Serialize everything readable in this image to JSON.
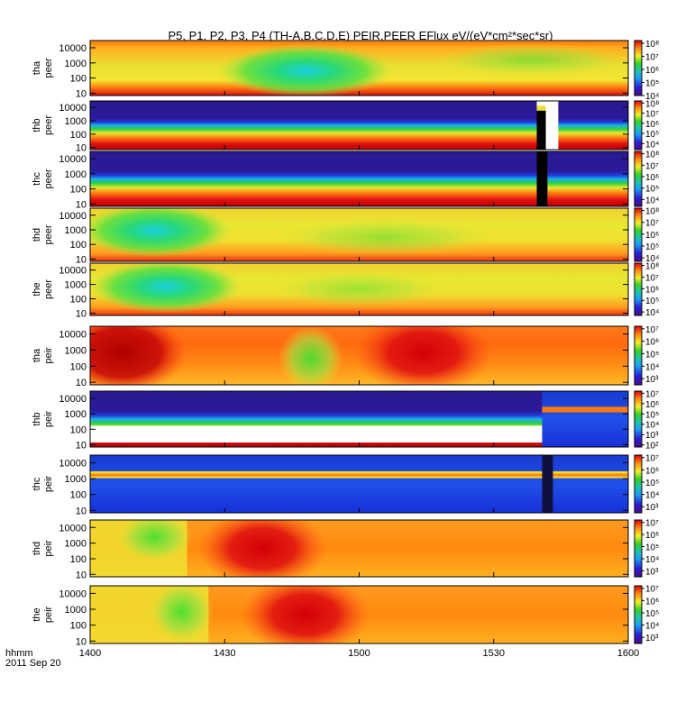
{
  "chart_data": {
    "type": "heatmap",
    "title": "P5, P1, P2, P3, P4 (TH-A,B,C,D,E) PEIR,PEER EFlux eV/(eV*cm²*sec*sr)",
    "xlabel": "hhmm",
    "date_label": "2011 Sep 20",
    "x_ticks": [
      "1400",
      "1430",
      "1500",
      "1530",
      "1600"
    ],
    "xlim": [
      "1400",
      "1600"
    ],
    "y_scale": "log",
    "ylim": [
      7,
      30000
    ],
    "y_ticks": [
      "10",
      "100",
      "1000",
      "10000"
    ],
    "colorbar_scale": "log",
    "panels": [
      {
        "line1": "tha",
        "line2": "peer",
        "cbar_ticks": [
          "10⁴",
          "10⁵",
          "10⁶",
          "10⁷",
          "10⁸"
        ],
        "cbar_range": [
          4,
          8.2
        ]
      },
      {
        "line1": "thb",
        "line2": "peer",
        "cbar_ticks": [
          "10⁴",
          "10⁵",
          "10⁶",
          "10⁷",
          "10⁸"
        ],
        "cbar_range": [
          3.4,
          8.2
        ]
      },
      {
        "line1": "thc",
        "line2": "peer",
        "cbar_ticks": [
          "10⁴",
          "10⁵",
          "10⁶",
          "10⁷",
          "10⁸"
        ],
        "cbar_range": [
          3.4,
          8.2
        ]
      },
      {
        "line1": "thd",
        "line2": "peer",
        "cbar_ticks": [
          "10⁴",
          "10⁵",
          "10⁶",
          "10⁷",
          "10⁸"
        ],
        "cbar_range": [
          3.7,
          8.2
        ]
      },
      {
        "line1": "the",
        "line2": "peer",
        "cbar_ticks": [
          "10⁴",
          "10⁵",
          "10⁶",
          "10⁷",
          "10⁸"
        ],
        "cbar_range": [
          3.7,
          8.2
        ]
      },
      {
        "line1": "tha",
        "line2": "peir",
        "cbar_ticks": [
          "10³",
          "10⁴",
          "10⁵",
          "10⁶",
          "10⁷"
        ],
        "cbar_range": [
          2.5,
          7.2
        ]
      },
      {
        "line1": "thb",
        "line2": "peir",
        "cbar_ticks": [
          "10²",
          "10³",
          "10⁴",
          "10⁵",
          "10⁶",
          "10⁷"
        ],
        "cbar_range": [
          1.8,
          7.2
        ]
      },
      {
        "line1": "thc",
        "line2": "peir",
        "cbar_ticks": [
          "10³",
          "10⁴",
          "10⁵",
          "10⁶",
          "10⁷"
        ],
        "cbar_range": [
          2.5,
          7.2
        ]
      },
      {
        "line1": "thd",
        "line2": "peir",
        "cbar_ticks": [
          "10³",
          "10⁴",
          "10⁵",
          "10⁶",
          "10⁷"
        ],
        "cbar_range": [
          2.5,
          7.2
        ]
      },
      {
        "line1": "the",
        "line2": "peir",
        "cbar_ticks": [
          "10³",
          "10⁴",
          "10⁵",
          "10⁶",
          "10⁷"
        ],
        "cbar_range": [
          2.5,
          7.2
        ]
      }
    ]
  }
}
